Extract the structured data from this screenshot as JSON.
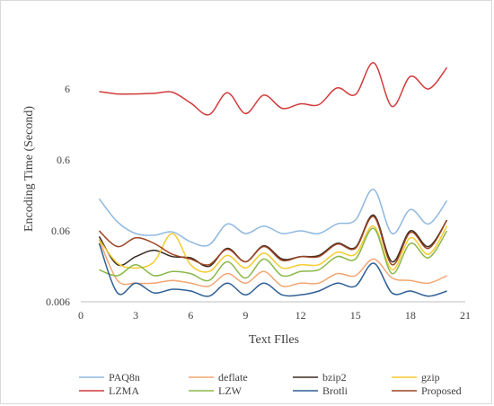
{
  "chart_data": {
    "type": "line",
    "xlabel": "Text FIles",
    "ylabel": "Encoding Time (Second)",
    "xlim": [
      0,
      21
    ],
    "x_ticks": [
      "0",
      "3",
      "6",
      "9",
      "12",
      "15",
      "18",
      "21"
    ],
    "ylim": [
      0.006,
      60
    ],
    "y_scale": "log",
    "y_ticks": [
      "0.006",
      "0.06",
      "0.6",
      "6"
    ],
    "grid": false,
    "legend_position": "bottom",
    "x": [
      1,
      2,
      3,
      4,
      5,
      6,
      7,
      8,
      9,
      10,
      11,
      12,
      13,
      14,
      15,
      16,
      17,
      18,
      19,
      20
    ],
    "series": [
      {
        "name": "PAQ8n",
        "color": "#8fb8e0",
        "values": [
          0.17,
          0.08,
          0.055,
          0.052,
          0.058,
          0.042,
          0.038,
          0.075,
          0.055,
          0.07,
          0.055,
          0.06,
          0.055,
          0.075,
          0.085,
          0.23,
          0.055,
          0.12,
          0.075,
          0.16
        ]
      },
      {
        "name": "deflate",
        "color": "#f2a571",
        "values": [
          0.045,
          0.012,
          0.011,
          0.011,
          0.012,
          0.011,
          0.01,
          0.015,
          0.011,
          0.016,
          0.01,
          0.011,
          0.011,
          0.015,
          0.014,
          0.024,
          0.013,
          0.012,
          0.011,
          0.014
        ]
      },
      {
        "name": "bzip2",
        "color": "#3a2a20",
        "values": [
          0.05,
          0.02,
          0.026,
          0.032,
          0.026,
          0.025,
          0.019,
          0.034,
          0.022,
          0.037,
          0.024,
          0.026,
          0.027,
          0.04,
          0.035,
          0.1,
          0.022,
          0.06,
          0.036,
          0.085
        ]
      },
      {
        "name": "gzip",
        "color": "#f5cc30",
        "values": [
          0.045,
          0.021,
          0.018,
          0.022,
          0.055,
          0.02,
          0.016,
          0.027,
          0.018,
          0.029,
          0.018,
          0.02,
          0.02,
          0.03,
          0.028,
          0.07,
          0.017,
          0.048,
          0.028,
          0.07
        ]
      },
      {
        "name": "LZMA",
        "color": "#d43a3a",
        "values": [
          5.5,
          5.1,
          5.1,
          5.2,
          5.4,
          3.8,
          2.6,
          5.3,
          2.7,
          4.9,
          3.2,
          3.7,
          3.6,
          6.2,
          5,
          14,
          3.4,
          9,
          6,
          12
        ]
      },
      {
        "name": "LZW",
        "color": "#8ab74a",
        "values": [
          0.017,
          0.014,
          0.02,
          0.014,
          0.016,
          0.015,
          0.012,
          0.022,
          0.013,
          0.024,
          0.014,
          0.016,
          0.017,
          0.026,
          0.024,
          0.065,
          0.015,
          0.04,
          0.025,
          0.06
        ]
      },
      {
        "name": "Brotli",
        "color": "#2f5f95",
        "values": [
          0.04,
          0.008,
          0.011,
          0.008,
          0.009,
          0.0085,
          0.0072,
          0.011,
          0.0075,
          0.011,
          0.0075,
          0.0075,
          0.0085,
          0.011,
          0.01,
          0.021,
          0.008,
          0.0085,
          0.0072,
          0.0085
        ]
      },
      {
        "name": "Proposed",
        "color": "#9b4522",
        "values": [
          0.06,
          0.036,
          0.048,
          0.04,
          0.028,
          0.024,
          0.02,
          0.033,
          0.022,
          0.036,
          0.023,
          0.026,
          0.026,
          0.039,
          0.034,
          0.095,
          0.02,
          0.057,
          0.034,
          0.085
        ]
      }
    ]
  }
}
